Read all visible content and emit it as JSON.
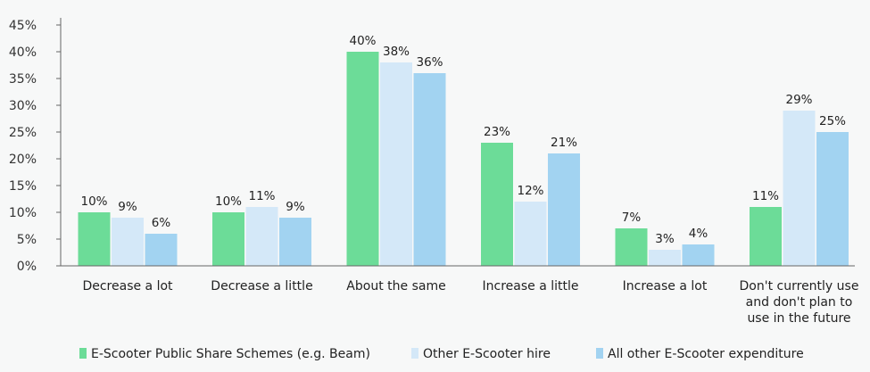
{
  "chart_data": {
    "type": "bar",
    "categories": [
      [
        "Decrease a lot"
      ],
      [
        "Decrease a little"
      ],
      [
        "About the same"
      ],
      [
        "Increase a little"
      ],
      [
        "Increase a lot"
      ],
      [
        "Don't currently use",
        "and don't plan to",
        "use in the future"
      ]
    ],
    "series": [
      {
        "name": "E-Scooter Public Share Schemes (e.g. Beam)",
        "color": "#6cdc98",
        "values": [
          10,
          10,
          40,
          23,
          7,
          11
        ]
      },
      {
        "name": "Other E-Scooter hire",
        "color": "#d4e8f8",
        "values": [
          9,
          11,
          38,
          12,
          3,
          29
        ]
      },
      {
        "name": "All other E-Scooter expenditure",
        "color": "#a2d3f1",
        "values": [
          6,
          9,
          36,
          21,
          4,
          25
        ]
      }
    ],
    "ylim": [
      0,
      45
    ],
    "yticks": [
      0,
      5,
      10,
      15,
      20,
      25,
      30,
      35,
      40,
      45
    ],
    "tick_suffix": "%",
    "value_suffix": "%",
    "legend_position": "bottom",
    "grid": false
  }
}
